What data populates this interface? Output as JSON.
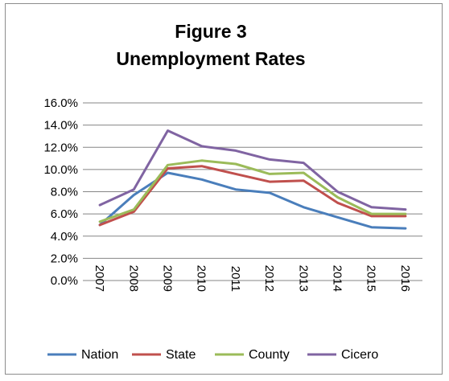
{
  "chart_data": {
    "type": "line",
    "title": "Figure 3",
    "subtitle": "Unemployment Rates",
    "xlabel": "",
    "ylabel": "",
    "categories": [
      "2007",
      "2008",
      "2009",
      "2010",
      "2011",
      "2012",
      "2013",
      "2014",
      "2015",
      "2016"
    ],
    "y_ticks": [
      "0.0%",
      "2.0%",
      "4.0%",
      "6.0%",
      "8.0%",
      "10.0%",
      "12.0%",
      "14.0%",
      "16.0%"
    ],
    "ylim": [
      0,
      16
    ],
    "y_unit": "%",
    "grid": "horizontal",
    "legend_position": "bottom",
    "series": [
      {
        "name": "Nation",
        "color": "#4a7ebb",
        "values": [
          5.0,
          7.7,
          9.7,
          9.1,
          8.2,
          7.9,
          6.6,
          5.7,
          4.8,
          4.7
        ]
      },
      {
        "name": "State",
        "color": "#c0504d",
        "values": [
          5.0,
          6.2,
          10.1,
          10.3,
          9.6,
          8.9,
          9.0,
          7.0,
          5.8,
          5.8
        ]
      },
      {
        "name": "County",
        "color": "#9bbb59",
        "values": [
          5.3,
          6.4,
          10.4,
          10.8,
          10.5,
          9.6,
          9.7,
          7.5,
          6.0,
          6.0
        ]
      },
      {
        "name": "Cicero",
        "color": "#8064a2",
        "values": [
          6.8,
          8.2,
          13.5,
          12.1,
          11.7,
          10.9,
          10.6,
          8.0,
          6.6,
          6.4
        ]
      }
    ]
  }
}
